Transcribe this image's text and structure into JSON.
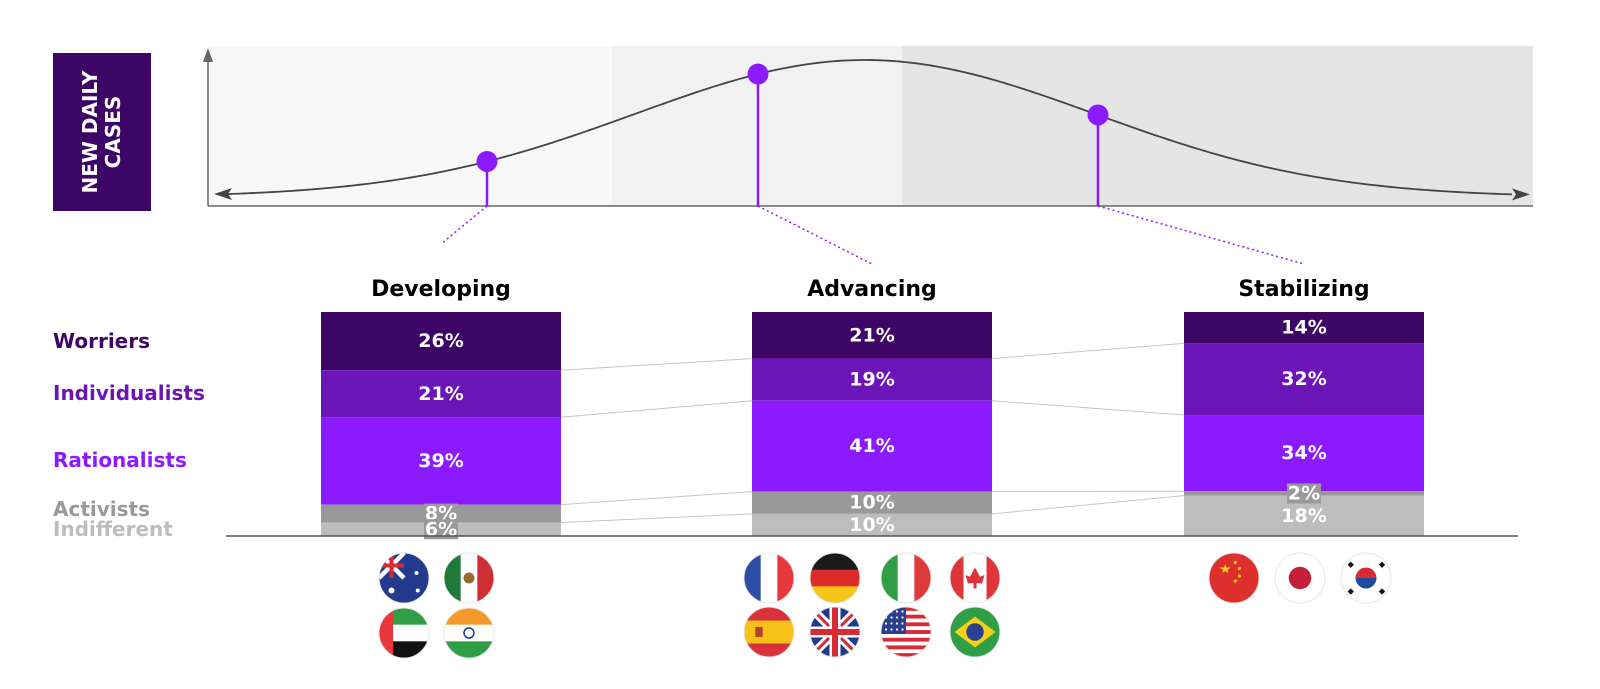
{
  "colors": {
    "worriers": "#3c0566",
    "individualists": "#6b14b8",
    "rationalists": "#8c1aff",
    "activists": "#999999",
    "indifferent": "#bdbdbd",
    "accent": "#8c1aff",
    "ylabel_bg": "#3c0566"
  },
  "flag_icons": {
    "Developing": [
      "australia-flag-icon",
      "mexico-flag-icon",
      "uae-flag-icon",
      "india-flag-icon"
    ],
    "Advancing": [
      "france-flag-icon",
      "germany-flag-icon",
      "italy-flag-icon",
      "canada-flag-icon",
      "spain-flag-icon",
      "uk-flag-icon",
      "usa-flag-icon",
      "brazil-flag-icon"
    ],
    "Stabilizing": [
      "china-flag-icon",
      "japan-flag-icon",
      "south-korea-flag-icon"
    ]
  },
  "chart_data": [
    {
      "type": "line",
      "ylabel": "NEW DAILY CASES",
      "xlabel": "",
      "curve": "bell-shaped epidemic curve",
      "phase_bands": [
        "Developing",
        "Advancing",
        "Stabilizing"
      ],
      "markers": [
        {
          "phase": "Developing",
          "position": "rising edge"
        },
        {
          "phase": "Advancing",
          "position": "peak"
        },
        {
          "phase": "Stabilizing",
          "position": "falling edge"
        }
      ]
    },
    {
      "type": "bar",
      "stacked": true,
      "categories": [
        "Developing",
        "Advancing",
        "Stabilizing"
      ],
      "series": [
        {
          "name": "Worriers",
          "values": [
            26,
            21,
            14
          ],
          "labels": [
            "26%",
            "21%",
            "14%"
          ]
        },
        {
          "name": "Individualists",
          "values": [
            21,
            19,
            32
          ],
          "labels": [
            "21%",
            "19%",
            "32%"
          ]
        },
        {
          "name": "Rationalists",
          "values": [
            39,
            41,
            34
          ],
          "labels": [
            "39%",
            "41%",
            "34%"
          ]
        },
        {
          "name": "Activists",
          "values": [
            8,
            10,
            2
          ],
          "labels": [
            "8%",
            "10%",
            "2%"
          ]
        },
        {
          "name": "Indifferent",
          "values": [
            6,
            10,
            18
          ],
          "labels": [
            "6%",
            "10%",
            "18%"
          ]
        }
      ],
      "ylim": [
        0,
        100
      ],
      "legend": "left"
    }
  ]
}
